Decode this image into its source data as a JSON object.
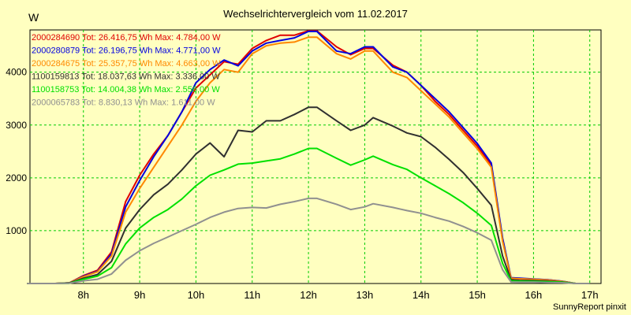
{
  "chart_data": {
    "type": "line",
    "title": "Wechselrichtervergleich vom 11.02.2017",
    "ylabel": "W",
    "footer": "SunnyReport pinxit",
    "ylim": [
      0,
      4800
    ],
    "yticks": [
      1000,
      2000,
      3000,
      4000
    ],
    "xlim": [
      7.05,
      17.2
    ],
    "xticks": [
      {
        "value": 8,
        "label": "8h"
      },
      {
        "value": 9,
        "label": "9h"
      },
      {
        "value": 10,
        "label": "10h"
      },
      {
        "value": 11,
        "label": "11h"
      },
      {
        "value": 12,
        "label": "12h"
      },
      {
        "value": 13,
        "label": "13h"
      },
      {
        "value": 14,
        "label": "14h"
      },
      {
        "value": 15,
        "label": "15h"
      },
      {
        "value": 16,
        "label": "16h"
      },
      {
        "value": 17,
        "label": "17h"
      }
    ],
    "grid": true,
    "legend_position": "top-left",
    "x": [
      7.0,
      7.5,
      7.75,
      8.0,
      8.25,
      8.5,
      8.75,
      9.0,
      9.25,
      9.5,
      9.75,
      10.0,
      10.25,
      10.5,
      10.75,
      11.0,
      11.25,
      11.5,
      11.75,
      12.0,
      12.15,
      12.5,
      12.75,
      13.0,
      13.15,
      13.5,
      13.75,
      14.0,
      14.25,
      14.5,
      14.75,
      15.0,
      15.25,
      15.45,
      15.6,
      15.75,
      16.0,
      16.25,
      16.5,
      16.75,
      17.0
    ],
    "series": [
      {
        "label": "2000284690 Tot: 26.416,75 Wh Max: 4.784,00 W",
        "color": "#e00000",
        "values": [
          0,
          0,
          10,
          150,
          250,
          600,
          1550,
          2050,
          2450,
          2800,
          3250,
          3700,
          3950,
          4200,
          4150,
          4450,
          4600,
          4700,
          4700,
          4784,
          4784,
          4480,
          4330,
          4450,
          4450,
          4130,
          4000,
          3750,
          3450,
          3200,
          2900,
          2600,
          2250,
          820,
          100,
          90,
          80,
          70,
          40,
          0,
          0
        ]
      },
      {
        "label": "2000280879 Tot: 26.196,75 Wh Max: 4.771,00 W",
        "color": "#0000e0",
        "values": [
          0,
          0,
          10,
          140,
          230,
          560,
          1450,
          1950,
          2400,
          2800,
          3250,
          3800,
          4050,
          4230,
          4120,
          4400,
          4550,
          4600,
          4650,
          4771,
          4771,
          4400,
          4350,
          4480,
          4480,
          4100,
          4000,
          3750,
          3500,
          3250,
          2950,
          2650,
          2280,
          860,
          110,
          100,
          85,
          70,
          45,
          0,
          0
        ]
      },
      {
        "label": "2000284675 Tot: 25.357,75 Wh Max: 4.663,00 W",
        "color": "#ff8800",
        "values": [
          0,
          0,
          10,
          130,
          220,
          520,
          1350,
          1800,
          2200,
          2600,
          3000,
          3450,
          3800,
          4050,
          4000,
          4350,
          4500,
          4550,
          4570,
          4663,
          4663,
          4350,
          4250,
          4400,
          4400,
          4000,
          3900,
          3650,
          3400,
          3150,
          2850,
          2550,
          2200,
          800,
          100,
          90,
          80,
          65,
          40,
          0,
          0
        ]
      },
      {
        "label": "1100159813 Tot: 18.037,63 Wh Max: 3.336,00 W",
        "color": "#303030",
        "values": [
          0,
          0,
          10,
          100,
          170,
          420,
          1050,
          1400,
          1680,
          1880,
          2150,
          2450,
          2660,
          2400,
          2900,
          2870,
          3080,
          3080,
          3200,
          3336,
          3336,
          3080,
          2900,
          3000,
          3140,
          2980,
          2850,
          2780,
          2580,
          2350,
          2100,
          1800,
          1480,
          520,
          70,
          60,
          55,
          45,
          30,
          0,
          0
        ]
      },
      {
        "label": "1100158753 Tot: 14.004,38 Wh Max: 2.556,00 W",
        "color": "#00e000",
        "values": [
          0,
          0,
          5,
          80,
          140,
          300,
          750,
          1050,
          1250,
          1400,
          1600,
          1850,
          2050,
          2150,
          2260,
          2280,
          2320,
          2360,
          2450,
          2556,
          2556,
          2370,
          2240,
          2340,
          2410,
          2250,
          2160,
          2000,
          1850,
          1700,
          1530,
          1330,
          1100,
          380,
          50,
          45,
          40,
          35,
          25,
          0,
          0
        ]
      },
      {
        "label": "2000065783 Tot: 8.830,13 Wh Max: 1.611,00 W",
        "color": "#909090",
        "values": [
          0,
          0,
          5,
          50,
          80,
          180,
          440,
          620,
          760,
          880,
          1000,
          1120,
          1250,
          1350,
          1420,
          1440,
          1430,
          1500,
          1550,
          1611,
          1611,
          1500,
          1400,
          1450,
          1510,
          1440,
          1380,
          1330,
          1250,
          1180,
          1080,
          960,
          820,
          260,
          30,
          25,
          25,
          20,
          15,
          0,
          0
        ]
      }
    ]
  }
}
